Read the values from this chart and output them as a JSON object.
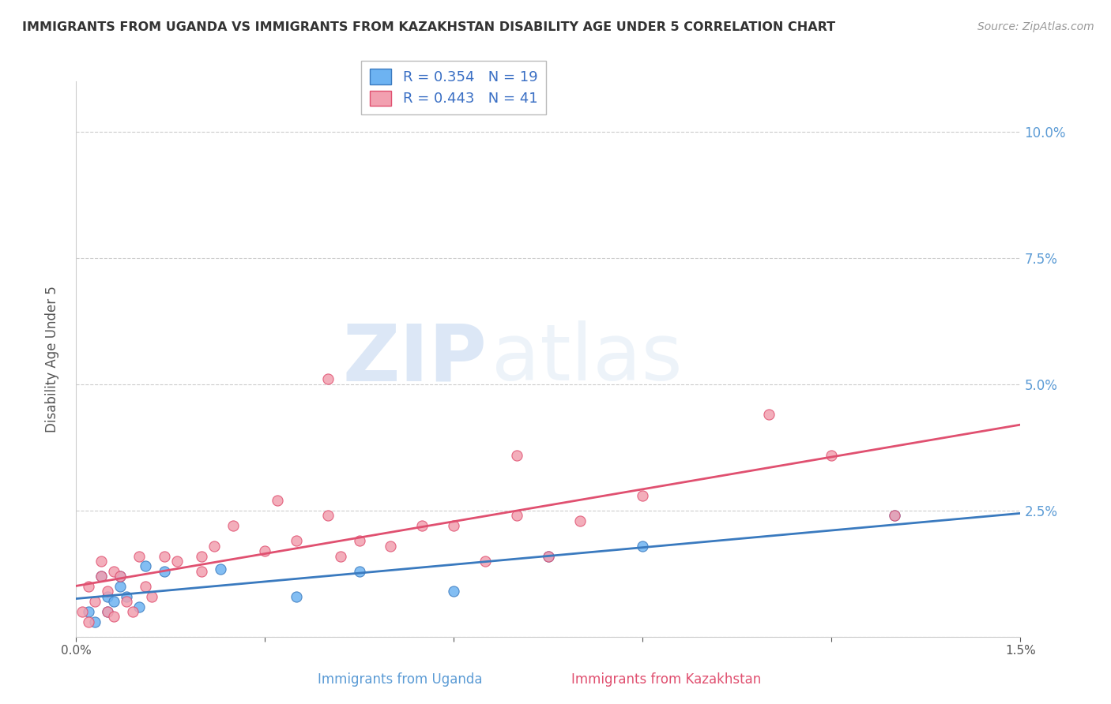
{
  "title": "IMMIGRANTS FROM UGANDA VS IMMIGRANTS FROM KAZAKHSTAN DISABILITY AGE UNDER 5 CORRELATION CHART",
  "source": "Source: ZipAtlas.com",
  "ylabel": "Disability Age Under 5",
  "xlabel_uganda": "Immigrants from Uganda",
  "xlabel_kazakhstan": "Immigrants from Kazakhstan",
  "xlim": [
    0.0,
    0.015
  ],
  "ylim": [
    0.0,
    0.11
  ],
  "yticks": [
    0.0,
    0.025,
    0.05,
    0.075,
    0.1
  ],
  "ytick_labels": [
    "",
    "2.5%",
    "5.0%",
    "7.5%",
    "10.0%"
  ],
  "xticks": [
    0.0,
    0.003,
    0.006,
    0.009,
    0.012,
    0.015
  ],
  "xtick_labels": [
    "0.0%",
    "",
    "",
    "",
    "",
    "1.5%"
  ],
  "r_uganda": 0.354,
  "n_uganda": 19,
  "r_kazakhstan": 0.443,
  "n_kazakhstan": 41,
  "color_uganda": "#6db3f2",
  "color_kazakhstan": "#f2a0b0",
  "line_color_uganda": "#3a7abf",
  "line_color_kazakhstan": "#e05070",
  "uganda_x": [
    0.0002,
    0.0003,
    0.0004,
    0.0005,
    0.0005,
    0.0006,
    0.0007,
    0.0007,
    0.0008,
    0.001,
    0.0011,
    0.0014,
    0.0023,
    0.0035,
    0.0045,
    0.006,
    0.0075,
    0.009,
    0.013
  ],
  "uganda_y": [
    0.005,
    0.003,
    0.012,
    0.005,
    0.008,
    0.007,
    0.01,
    0.012,
    0.008,
    0.006,
    0.014,
    0.013,
    0.0135,
    0.008,
    0.013,
    0.009,
    0.016,
    0.018,
    0.024
  ],
  "kazakhstan_x": [
    0.0001,
    0.0002,
    0.0002,
    0.0003,
    0.0004,
    0.0004,
    0.0005,
    0.0005,
    0.0006,
    0.0006,
    0.0007,
    0.0008,
    0.0009,
    0.001,
    0.0011,
    0.0012,
    0.0014,
    0.0016,
    0.002,
    0.002,
    0.0022,
    0.0025,
    0.003,
    0.0032,
    0.0035,
    0.004,
    0.004,
    0.0042,
    0.0045,
    0.005,
    0.0055,
    0.006,
    0.0065,
    0.007,
    0.007,
    0.0075,
    0.008,
    0.009,
    0.011,
    0.012,
    0.013
  ],
  "kazakhstan_y": [
    0.005,
    0.003,
    0.01,
    0.007,
    0.012,
    0.015,
    0.005,
    0.009,
    0.013,
    0.004,
    0.012,
    0.007,
    0.005,
    0.016,
    0.01,
    0.008,
    0.016,
    0.015,
    0.013,
    0.016,
    0.018,
    0.022,
    0.017,
    0.027,
    0.019,
    0.051,
    0.024,
    0.016,
    0.019,
    0.018,
    0.022,
    0.022,
    0.015,
    0.024,
    0.036,
    0.016,
    0.023,
    0.028,
    0.044,
    0.036,
    0.024
  ],
  "watermark_zip": "ZIP",
  "watermark_atlas": "atlas",
  "background_color": "#ffffff",
  "grid_color": "#cccccc"
}
